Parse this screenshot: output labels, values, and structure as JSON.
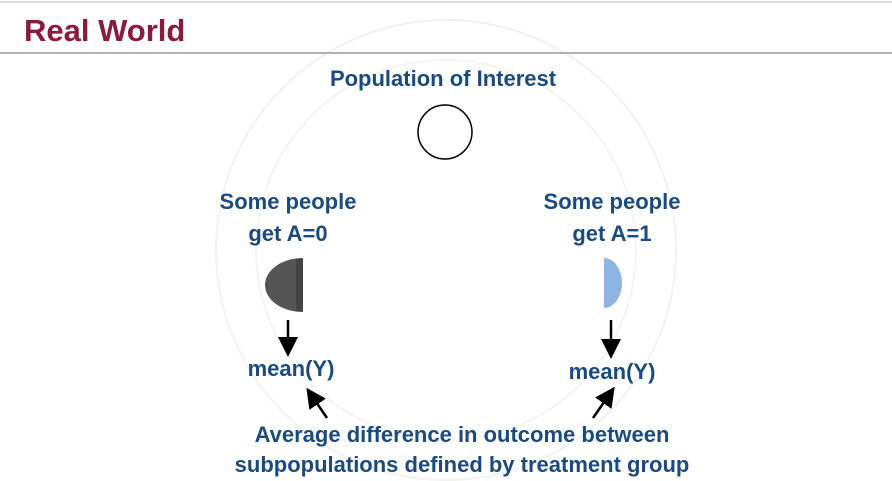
{
  "header": {
    "title": "Real World"
  },
  "population": {
    "label": "Population of Interest"
  },
  "groups": [
    {
      "label_lines": [
        "Some people",
        "get A=0"
      ],
      "outcome": "mean(Y)"
    },
    {
      "label_lines": [
        "Some people",
        "get A=1"
      ],
      "outcome": "mean(Y)"
    }
  ],
  "footer": {
    "lines": [
      "Average difference in outcome between",
      "subpopulations defined by treatment group"
    ]
  }
}
